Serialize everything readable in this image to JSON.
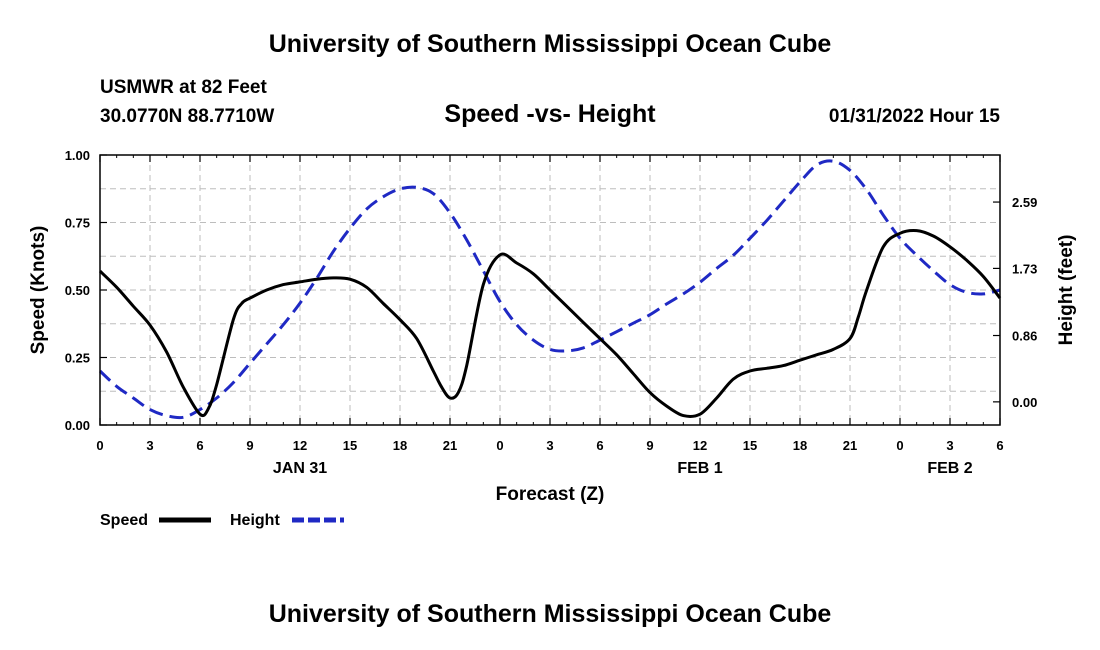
{
  "header": {
    "title": "University of Southern Mississippi Ocean Cube",
    "station": "USMWR at 82 Feet",
    "coords": "30.0770N  88.7710W",
    "datetime": "01/31/2022 Hour 15",
    "footer": "University of Southern Mississippi Ocean Cube"
  },
  "chart_data": {
    "type": "line",
    "title": "Speed -vs- Height",
    "xlabel": "Forecast (Z)",
    "ylabel": "Speed (Knots)",
    "y2label": "Height (feet)",
    "grid": true,
    "xlim": [
      0,
      54
    ],
    "ylim": [
      0,
      1
    ],
    "y2lim": [
      -0.3,
      3.2
    ],
    "x_ticks": [
      0,
      3,
      6,
      9,
      12,
      15,
      18,
      21,
      24,
      27,
      30,
      33,
      36,
      39,
      42,
      45,
      48,
      51,
      54
    ],
    "x_tick_labels": [
      "0",
      "3",
      "6",
      "9",
      "12",
      "15",
      "18",
      "21",
      "0",
      "3",
      "6",
      "9",
      "12",
      "15",
      "18",
      "21",
      "0",
      "3",
      "6"
    ],
    "day_labels": [
      {
        "x": 12,
        "label": "JAN 31"
      },
      {
        "x": 36,
        "label": "FEB 1"
      },
      {
        "x": 51,
        "label": "FEB 2"
      }
    ],
    "y_ticks": [
      0,
      0.25,
      0.5,
      0.75,
      1.0
    ],
    "y_tick_labels": [
      "0.00",
      "0.25",
      "0.50",
      "0.75",
      "1.00"
    ],
    "y2_ticks": [
      0.0,
      0.86,
      1.73,
      2.59
    ],
    "y2_tick_labels": [
      "0.00",
      "0.86",
      "1.73",
      "2.59"
    ],
    "series": [
      {
        "name": "Speed",
        "axis": "left",
        "color": "#000000",
        "dash": "solid",
        "x": [
          0,
          1,
          2,
          3,
          4,
          5,
          6,
          6.5,
          7,
          8,
          8.5,
          9,
          10,
          11,
          12,
          13,
          14,
          15,
          16,
          17,
          18,
          19,
          20,
          20.5,
          21,
          21.5,
          22,
          23,
          24,
          25,
          26,
          27,
          28,
          29,
          30,
          31,
          32,
          33,
          34,
          35,
          36,
          37,
          38,
          39,
          40,
          41,
          42,
          43,
          44,
          45,
          45.5,
          46,
          47,
          48,
          49,
          50,
          51,
          52,
          53,
          54
        ],
        "values": [
          0.57,
          0.51,
          0.44,
          0.37,
          0.27,
          0.14,
          0.04,
          0.06,
          0.15,
          0.39,
          0.45,
          0.47,
          0.5,
          0.52,
          0.53,
          0.54,
          0.545,
          0.54,
          0.51,
          0.45,
          0.39,
          0.32,
          0.2,
          0.14,
          0.1,
          0.12,
          0.22,
          0.52,
          0.63,
          0.6,
          0.56,
          0.5,
          0.44,
          0.38,
          0.32,
          0.26,
          0.19,
          0.12,
          0.07,
          0.035,
          0.04,
          0.1,
          0.17,
          0.2,
          0.21,
          0.22,
          0.24,
          0.26,
          0.28,
          0.32,
          0.4,
          0.5,
          0.66,
          0.71,
          0.72,
          0.7,
          0.66,
          0.61,
          0.55,
          0.47
        ]
      },
      {
        "name": "Height",
        "axis": "right",
        "color": "#1f29c4",
        "dash": "dashed",
        "x": [
          0,
          1,
          2,
          3,
          4,
          5,
          6,
          7,
          8,
          9,
          10,
          11,
          12,
          13,
          14,
          15,
          16,
          17,
          18,
          19,
          20,
          21,
          22,
          23,
          24,
          25,
          26,
          27,
          28,
          29,
          30,
          31,
          32,
          33,
          34,
          35,
          36,
          37,
          38,
          39,
          40,
          41,
          42,
          43,
          44,
          45,
          46,
          47,
          48,
          49,
          50,
          51,
          52,
          53,
          54
        ],
        "values": [
          0.4,
          0.2,
          0.05,
          -0.1,
          -0.18,
          -0.2,
          -0.1,
          0.05,
          0.25,
          0.5,
          0.75,
          1.0,
          1.28,
          1.6,
          1.95,
          2.25,
          2.5,
          2.66,
          2.76,
          2.78,
          2.7,
          2.45,
          2.1,
          1.7,
          1.3,
          1.0,
          0.8,
          0.68,
          0.66,
          0.7,
          0.8,
          0.91,
          1.02,
          1.13,
          1.27,
          1.4,
          1.55,
          1.73,
          1.9,
          2.12,
          2.35,
          2.6,
          2.85,
          3.07,
          3.12,
          3.0,
          2.75,
          2.42,
          2.12,
          1.9,
          1.7,
          1.52,
          1.42,
          1.4,
          1.45
        ]
      }
    ],
    "legend": [
      {
        "label": "Speed",
        "color": "#000000",
        "dash": "solid"
      },
      {
        "label": "Height",
        "color": "#1f29c4",
        "dash": "dashed"
      }
    ],
    "legend_position": "bottom-left"
  }
}
